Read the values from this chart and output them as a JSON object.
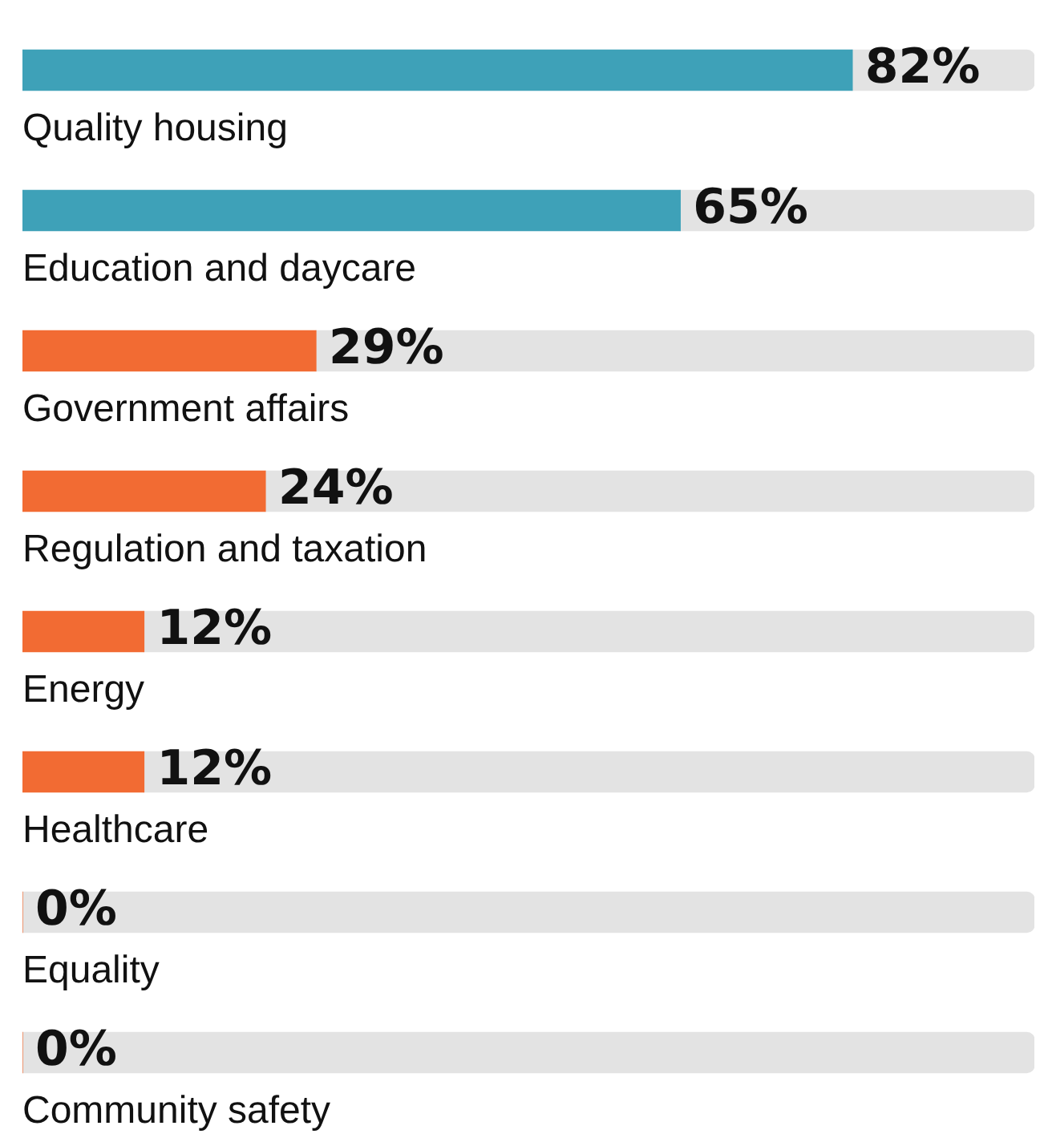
{
  "chart_data": {
    "type": "bar",
    "orientation": "horizontal",
    "stacked": true,
    "categories": [
      "Quality housing",
      "Education and daycare",
      "Government affairs",
      "Regulation and taxation",
      "Energy",
      "Healthcare",
      "Equality",
      "Community safety"
    ],
    "series": [
      {
        "colors": [
          "#3ea1b8",
          "#3ea1b8",
          "#f26b33",
          "#f26b33",
          "#f26b33",
          "#f26b33",
          "#f26b33",
          "#f26b33"
        ],
        "values": [
          82,
          65,
          29,
          24,
          12,
          12,
          0,
          0
        ],
        "value_labels": [
          "82%",
          "65%",
          "29%",
          "24%",
          "12%",
          "12%",
          "0%",
          "0%"
        ]
      },
      {
        "color": "#e3e3e3",
        "values": [
          18,
          35,
          71,
          76,
          88,
          88,
          100,
          100
        ]
      }
    ],
    "xlim": [
      0,
      100
    ],
    "legend": false
  }
}
